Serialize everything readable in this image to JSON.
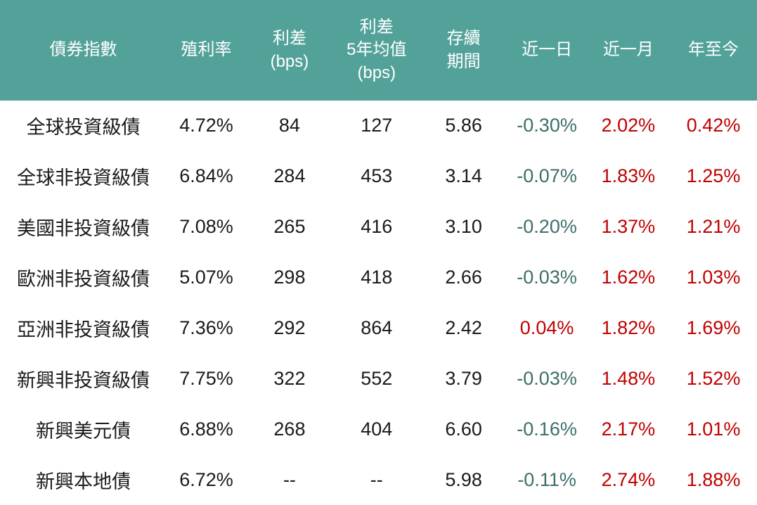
{
  "chart_data": {
    "type": "table",
    "columns": [
      "債券指數",
      "殖利率",
      "利差(bps)",
      "利差5年均值(bps)",
      "存續期間",
      "近一日",
      "近一月",
      "年至今"
    ],
    "rows": [
      [
        "全球投資級債",
        "4.72%",
        "84",
        "127",
        "5.86",
        "-0.30%",
        "2.02%",
        "0.42%"
      ],
      [
        "全球非投資級債",
        "6.84%",
        "284",
        "453",
        "3.14",
        "-0.07%",
        "1.83%",
        "1.25%"
      ],
      [
        "美國非投資級債",
        "7.08%",
        "265",
        "416",
        "3.10",
        "-0.20%",
        "1.37%",
        "1.21%"
      ],
      [
        "歐洲非投資級債",
        "5.07%",
        "298",
        "418",
        "2.66",
        "-0.03%",
        "1.62%",
        "1.03%"
      ],
      [
        "亞洲非投資級債",
        "7.36%",
        "292",
        "864",
        "2.42",
        "0.04%",
        "1.82%",
        "1.69%"
      ],
      [
        "新興非投資級債",
        "7.75%",
        "322",
        "552",
        "3.79",
        "-0.03%",
        "1.48%",
        "1.52%"
      ],
      [
        "新興美元債",
        "6.88%",
        "268",
        "404",
        "6.60",
        "-0.16%",
        "2.17%",
        "1.01%"
      ],
      [
        "新興本地債",
        "6.72%",
        "--",
        "--",
        "5.98",
        "-0.11%",
        "2.74%",
        "1.88%"
      ]
    ]
  },
  "header": {
    "columns": [
      {
        "label": "債券指數"
      },
      {
        "label": "殖利率"
      },
      {
        "label": "利差\n(bps)"
      },
      {
        "label": "利差\n5年均值\n(bps)"
      },
      {
        "label": "存續\n期間"
      },
      {
        "label": "近一日"
      },
      {
        "label": "近一月"
      },
      {
        "label": "年至今"
      }
    ]
  },
  "rows": [
    {
      "name": "全球投資級債",
      "yield": "4.72%",
      "spread_bps": "84",
      "spread_5y_avg_bps": "127",
      "duration": "5.86",
      "chg_1d": {
        "value": "-0.30%",
        "trend": "down"
      },
      "chg_1m": {
        "value": "2.02%",
        "trend": "up"
      },
      "chg_ytd": {
        "value": "0.42%",
        "trend": "up"
      }
    },
    {
      "name": "全球非投資級債",
      "yield": "6.84%",
      "spread_bps": "284",
      "spread_5y_avg_bps": "453",
      "duration": "3.14",
      "chg_1d": {
        "value": "-0.07%",
        "trend": "down"
      },
      "chg_1m": {
        "value": "1.83%",
        "trend": "up"
      },
      "chg_ytd": {
        "value": "1.25%",
        "trend": "up"
      }
    },
    {
      "name": "美國非投資級債",
      "yield": "7.08%",
      "spread_bps": "265",
      "spread_5y_avg_bps": "416",
      "duration": "3.10",
      "chg_1d": {
        "value": "-0.20%",
        "trend": "down"
      },
      "chg_1m": {
        "value": "1.37%",
        "trend": "up"
      },
      "chg_ytd": {
        "value": "1.21%",
        "trend": "up"
      }
    },
    {
      "name": "歐洲非投資級債",
      "yield": "5.07%",
      "spread_bps": "298",
      "spread_5y_avg_bps": "418",
      "duration": "2.66",
      "chg_1d": {
        "value": "-0.03%",
        "trend": "down"
      },
      "chg_1m": {
        "value": "1.62%",
        "trend": "up"
      },
      "chg_ytd": {
        "value": "1.03%",
        "trend": "up"
      }
    },
    {
      "name": "亞洲非投資級債",
      "yield": "7.36%",
      "spread_bps": "292",
      "spread_5y_avg_bps": "864",
      "duration": "2.42",
      "chg_1d": {
        "value": "0.04%",
        "trend": "up"
      },
      "chg_1m": {
        "value": "1.82%",
        "trend": "up"
      },
      "chg_ytd": {
        "value": "1.69%",
        "trend": "up"
      }
    },
    {
      "name": "新興非投資級債",
      "yield": "7.75%",
      "spread_bps": "322",
      "spread_5y_avg_bps": "552",
      "duration": "3.79",
      "chg_1d": {
        "value": "-0.03%",
        "trend": "down"
      },
      "chg_1m": {
        "value": "1.48%",
        "trend": "up"
      },
      "chg_ytd": {
        "value": "1.52%",
        "trend": "up"
      }
    },
    {
      "name": "新興美元債",
      "yield": "6.88%",
      "spread_bps": "268",
      "spread_5y_avg_bps": "404",
      "duration": "6.60",
      "chg_1d": {
        "value": "-0.16%",
        "trend": "down"
      },
      "chg_1m": {
        "value": "2.17%",
        "trend": "up"
      },
      "chg_ytd": {
        "value": "1.01%",
        "trend": "up"
      }
    },
    {
      "name": "新興本地債",
      "yield": "6.72%",
      "spread_bps": "--",
      "spread_5y_avg_bps": "--",
      "duration": "5.98",
      "chg_1d": {
        "value": "-0.11%",
        "trend": "down"
      },
      "chg_1m": {
        "value": "2.74%",
        "trend": "up"
      },
      "chg_ytd": {
        "value": "1.88%",
        "trend": "up"
      }
    }
  ],
  "colors": {
    "header_bg": "#53A29A",
    "header_text": "#FFFFFF",
    "body_text": "#1A1A1A",
    "up_text": "#C00000",
    "down_text": "#3D6F69",
    "row_bg": "#FFFFFF"
  }
}
